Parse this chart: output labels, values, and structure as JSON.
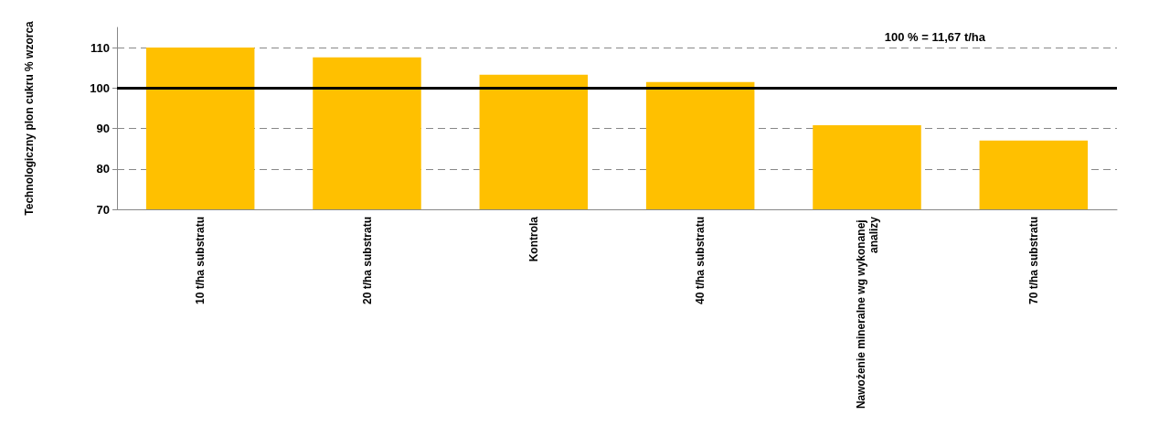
{
  "chart_data": {
    "type": "bar",
    "ylabel": "Technologiczny plon cukru % wzorca",
    "categories": [
      "10 t/ha substratu",
      "20 t/ha substratu",
      "Kontrola",
      "40 t/ha substratu",
      "Nawożenie mineralne wg wykonanej analizy",
      "70 t/ha substratu"
    ],
    "values": [
      110,
      107.6,
      103.3,
      101.5,
      90.8,
      87.0
    ],
    "color": "#ffc000",
    "ylim": [
      70,
      115
    ],
    "yticks": [
      70,
      80,
      90,
      100,
      110
    ],
    "grid": "y",
    "ref_lines": [
      {
        "axis": "y",
        "value": 100,
        "color": "#000000",
        "line_style": "solid"
      }
    ],
    "annotations": [
      "100 % = 11,67 t/ha"
    ]
  }
}
